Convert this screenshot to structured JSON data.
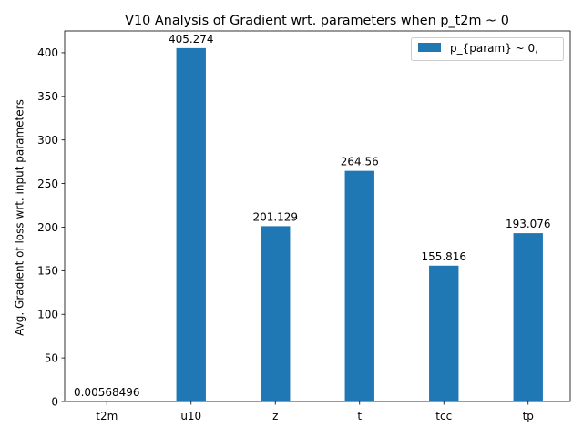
{
  "chart_data": {
    "type": "bar",
    "title": "V10 Analysis of Gradient wrt. parameters when p_t2m ~ 0",
    "xlabel": "",
    "ylabel": "Avg. Gradient of loss wrt. input parameters",
    "categories": [
      "t2m",
      "u10",
      "z",
      "t",
      "tcc",
      "tp"
    ],
    "series": [
      {
        "name": "p_{param} ~ 0,",
        "values": [
          0.00568496,
          405.274,
          201.129,
          264.56,
          155.816,
          193.076
        ],
        "labels": [
          "0.00568496",
          "405.274",
          "201.129",
          "264.56",
          "155.816",
          "193.076"
        ],
        "color": "#1f77b4"
      }
    ],
    "ylim": [
      0,
      425
    ],
    "yticks": [
      0,
      50,
      100,
      150,
      200,
      250,
      300,
      350,
      400
    ],
    "grid": false,
    "legend_position": "upper right"
  }
}
